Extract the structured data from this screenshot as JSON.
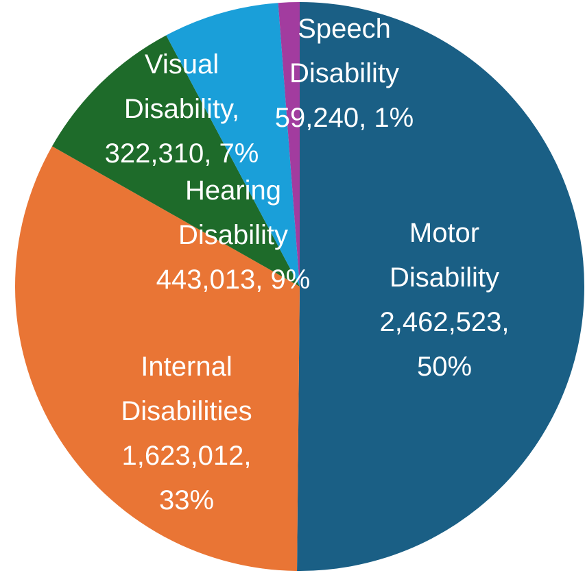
{
  "chart_data": {
    "type": "pie",
    "categories": [
      "Motor Disability",
      "Internal Disabilities",
      "Hearing Disability",
      "Visual Disability,",
      "Speech Disability"
    ],
    "values": [
      2462523,
      1623012,
      443013,
      322310,
      59240
    ],
    "value_labels": [
      "2,462,523, 50%",
      "1,623,012, 33%",
      "443,013, 9%",
      "322,310, 7%",
      "59,240, 1%"
    ],
    "colors": [
      "#1a5f85",
      "#e97535",
      "#1e6b2a",
      "#1a9fd9",
      "#a23c9f"
    ]
  }
}
